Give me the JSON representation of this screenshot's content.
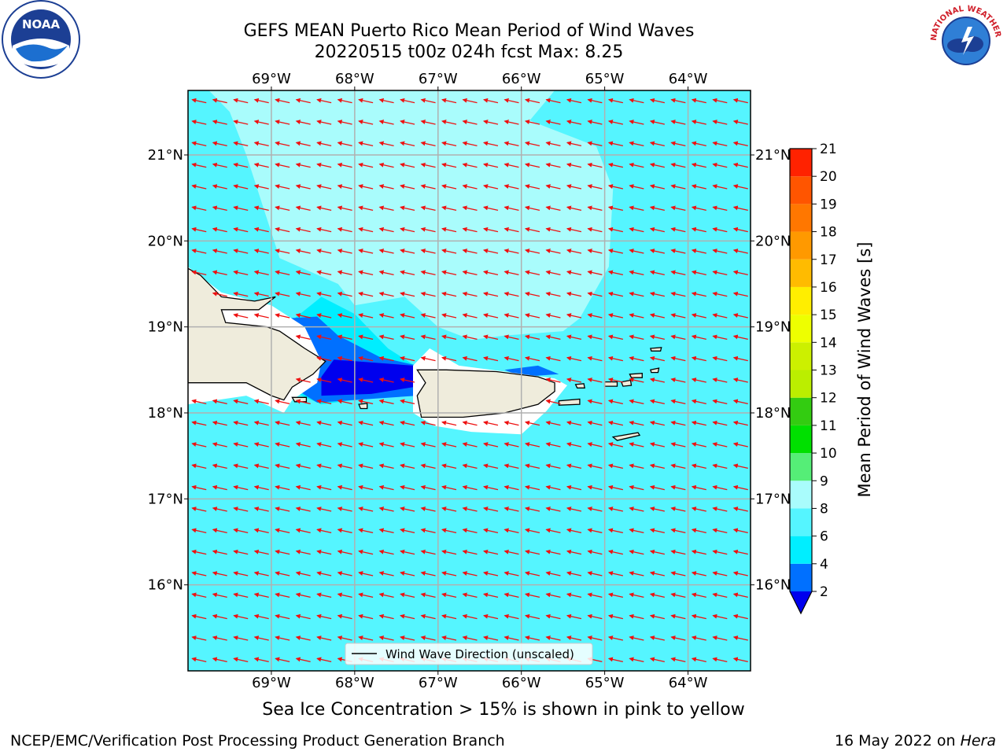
{
  "header": {
    "title_line1": "GEFS MEAN Puerto Rico Mean Period of Wind Waves",
    "title_line2": "20220515 t00z 024h fcst   Max: 8.25"
  },
  "logos": {
    "noaa": {
      "text": "NOAA",
      "icon": "noaa-seagull-logo-icon"
    },
    "nws": {
      "text": "NATIONAL WEATHER SERVICE",
      "icon": "nws-storm-logo-icon"
    }
  },
  "subtitle": "Sea Ice Concentration > 15% is shown in pink to yellow",
  "footer": {
    "credit": "NCEP/EMC/Verification Post Processing Product Generation Branch",
    "date_prefix": "16 May 2022 on ",
    "machine": "Hera"
  },
  "chart_data": {
    "type": "map",
    "lon_range": [
      -70.0,
      -63.25
    ],
    "lat_range": [
      15.0,
      21.75
    ],
    "lon_ticks": [
      -69,
      -68,
      -67,
      -66,
      -65,
      -64
    ],
    "lon_tick_labels": [
      "69°W",
      "68°W",
      "67°W",
      "66°W",
      "65°W",
      "64°W"
    ],
    "lat_ticks": [
      16,
      17,
      18,
      19,
      20,
      21
    ],
    "lat_tick_labels": [
      "16°N",
      "17°N",
      "18°N",
      "19°N",
      "20°N",
      "21°N"
    ],
    "grid": true,
    "legend": {
      "label": "Wind Wave Direction (unscaled)",
      "position": "bottom-center"
    },
    "arrow_direction": "west-northwest",
    "arrow_color": "#ee1111",
    "land_color": "#efecdc",
    "coast_color": "#000000",
    "colorbar": {
      "label": "Mean Period of Wind Waves [s]",
      "ticks": [
        2,
        4,
        6,
        8,
        9,
        10,
        11,
        12,
        13,
        14,
        15,
        16,
        17,
        18,
        19,
        20,
        21
      ],
      "underflow_color": "#0000ee",
      "levels": [
        {
          "from": 2,
          "to": 4,
          "color": "#0070ff"
        },
        {
          "from": 4,
          "to": 6,
          "color": "#00eeff"
        },
        {
          "from": 6,
          "to": 8,
          "color": "#55f5ff"
        },
        {
          "from": 8,
          "to": 9,
          "color": "#a9fcfc"
        },
        {
          "from": 9,
          "to": 10,
          "color": "#55ee77"
        },
        {
          "from": 10,
          "to": 11,
          "color": "#00e000"
        },
        {
          "from": 11,
          "to": 12,
          "color": "#33cc11"
        },
        {
          "from": 12,
          "to": 13,
          "color": "#bbee00"
        },
        {
          "from": 13,
          "to": 14,
          "color": "#ccf000"
        },
        {
          "from": 14,
          "to": 15,
          "color": "#eeff00"
        },
        {
          "from": 15,
          "to": 16,
          "color": "#ffee00"
        },
        {
          "from": 16,
          "to": 17,
          "color": "#ffbb00"
        },
        {
          "from": 17,
          "to": 18,
          "color": "#ff9900"
        },
        {
          "from": 18,
          "to": 19,
          "color": "#ff7700"
        },
        {
          "from": 19,
          "to": 20,
          "color": "#ff5500"
        },
        {
          "from": 20,
          "to": 21,
          "color": "#ff2200"
        }
      ],
      "overflow_color": "#ff0000"
    },
    "field_regions": [
      {
        "name": "background",
        "value": 7,
        "polygon": [
          [
            -70,
            21.75
          ],
          [
            -63.25,
            21.75
          ],
          [
            -63.25,
            15
          ],
          [
            -70,
            15
          ]
        ]
      },
      {
        "name": "north-light-region",
        "value": 8.25,
        "polygon": [
          [
            -69.75,
            21.75
          ],
          [
            -66.5,
            21.75
          ],
          [
            -65.6,
            21.75
          ],
          [
            -65.9,
            21.4
          ],
          [
            -65.1,
            21.1
          ],
          [
            -64.9,
            20.6
          ],
          [
            -64.95,
            19.7
          ],
          [
            -65.3,
            19.1
          ],
          [
            -65.5,
            18.95
          ],
          [
            -66.2,
            18.9
          ],
          [
            -66.6,
            18.85
          ],
          [
            -67.0,
            19.0
          ],
          [
            -67.4,
            19.35
          ],
          [
            -68.0,
            19.25
          ],
          [
            -68.2,
            19.5
          ],
          [
            -68.9,
            19.8
          ],
          [
            -69.1,
            20.4
          ],
          [
            -69.3,
            21.0
          ],
          [
            -69.5,
            21.5
          ]
        ]
      },
      {
        "name": "mona-passage-mid",
        "value": 4.5,
        "polygon": [
          [
            -68.85,
            19.0
          ],
          [
            -68.4,
            19.35
          ],
          [
            -68.0,
            19.15
          ],
          [
            -67.6,
            18.75
          ],
          [
            -67.2,
            18.5
          ],
          [
            -67.25,
            18.25
          ],
          [
            -68.4,
            18.1
          ],
          [
            -68.75,
            18.25
          ]
        ]
      },
      {
        "name": "mona-passage-blue",
        "value": 3,
        "polygon": [
          [
            -68.8,
            19.1
          ],
          [
            -68.45,
            19.12
          ],
          [
            -68.2,
            18.9
          ],
          [
            -67.7,
            18.65
          ],
          [
            -67.25,
            18.55
          ],
          [
            -67.25,
            18.2
          ],
          [
            -68.45,
            18.12
          ],
          [
            -68.75,
            18.3
          ]
        ]
      },
      {
        "name": "mona-passage-deep",
        "value": 1.5,
        "polygon": [
          [
            -68.25,
            18.62
          ],
          [
            -67.3,
            18.55
          ],
          [
            -67.3,
            18.3
          ],
          [
            -67.8,
            18.22
          ],
          [
            -68.4,
            18.2
          ],
          [
            -68.4,
            18.42
          ]
        ]
      },
      {
        "name": "pr-north-blue",
        "value": 3,
        "polygon": [
          [
            -66.2,
            18.5
          ],
          [
            -65.8,
            18.55
          ],
          [
            -65.55,
            18.45
          ],
          [
            -66.0,
            18.42
          ]
        ]
      }
    ],
    "nodata_regions": [
      {
        "name": "hispaniola-buffer",
        "polygon": [
          [
            -70,
            19.7
          ],
          [
            -69.6,
            19.4
          ],
          [
            -69.0,
            19.25
          ],
          [
            -68.6,
            19.0
          ],
          [
            -68.4,
            18.6
          ],
          [
            -68.45,
            18.35
          ],
          [
            -68.75,
            18.15
          ],
          [
            -68.85,
            18.0
          ],
          [
            -69.3,
            18.2
          ],
          [
            -70,
            18.1
          ]
        ]
      },
      {
        "name": "puerto-rico-buffer",
        "polygon": [
          [
            -67.3,
            18.55
          ],
          [
            -67.1,
            18.75
          ],
          [
            -66.75,
            18.55
          ],
          [
            -66.2,
            18.48
          ],
          [
            -65.6,
            18.4
          ],
          [
            -65.45,
            18.32
          ],
          [
            -65.7,
            18.02
          ],
          [
            -66.0,
            17.75
          ],
          [
            -66.6,
            17.78
          ],
          [
            -67.05,
            17.85
          ],
          [
            -67.3,
            18.0
          ]
        ]
      }
    ],
    "land": [
      {
        "name": "hispaniola",
        "polygon": [
          [
            -70,
            19.68
          ],
          [
            -69.85,
            19.6
          ],
          [
            -69.6,
            19.35
          ],
          [
            -69.2,
            19.3
          ],
          [
            -68.95,
            19.35
          ],
          [
            -69.15,
            19.2
          ],
          [
            -69.6,
            19.2
          ],
          [
            -69.55,
            19.05
          ],
          [
            -69.05,
            19.0
          ],
          [
            -68.9,
            18.95
          ],
          [
            -68.6,
            18.75
          ],
          [
            -68.35,
            18.6
          ],
          [
            -68.5,
            18.45
          ],
          [
            -68.75,
            18.3
          ],
          [
            -68.85,
            18.15
          ],
          [
            -69.0,
            18.2
          ],
          [
            -69.3,
            18.35
          ],
          [
            -70,
            18.35
          ]
        ]
      },
      {
        "name": "puerto-rico",
        "polygon": [
          [
            -67.25,
            18.5
          ],
          [
            -66.9,
            18.5
          ],
          [
            -66.3,
            18.48
          ],
          [
            -65.8,
            18.42
          ],
          [
            -65.6,
            18.35
          ],
          [
            -65.6,
            18.25
          ],
          [
            -65.8,
            18.1
          ],
          [
            -66.2,
            18.0
          ],
          [
            -66.7,
            17.95
          ],
          [
            -67.2,
            17.95
          ],
          [
            -67.25,
            18.2
          ],
          [
            -67.15,
            18.35
          ]
        ]
      },
      {
        "name": "vieques",
        "polygon": [
          [
            -65.55,
            18.14
          ],
          [
            -65.3,
            18.16
          ],
          [
            -65.3,
            18.1
          ],
          [
            -65.55,
            18.09
          ]
        ]
      },
      {
        "name": "culebra",
        "polygon": [
          [
            -65.35,
            18.33
          ],
          [
            -65.25,
            18.34
          ],
          [
            -65.24,
            18.29
          ],
          [
            -65.33,
            18.29
          ]
        ]
      },
      {
        "name": "st-thomas",
        "polygon": [
          [
            -65.0,
            18.36
          ],
          [
            -64.85,
            18.36
          ],
          [
            -64.85,
            18.31
          ],
          [
            -65.0,
            18.31
          ]
        ]
      },
      {
        "name": "st-john",
        "polygon": [
          [
            -64.8,
            18.36
          ],
          [
            -64.69,
            18.38
          ],
          [
            -64.68,
            18.32
          ],
          [
            -64.78,
            18.31
          ]
        ]
      },
      {
        "name": "tortola",
        "polygon": [
          [
            -64.7,
            18.45
          ],
          [
            -64.55,
            18.46
          ],
          [
            -64.55,
            18.41
          ],
          [
            -64.68,
            18.41
          ]
        ]
      },
      {
        "name": "anegada",
        "polygon": [
          [
            -64.45,
            18.75
          ],
          [
            -64.32,
            18.76
          ],
          [
            -64.33,
            18.72
          ],
          [
            -64.44,
            18.72
          ]
        ]
      },
      {
        "name": "virgin-gorda",
        "polygon": [
          [
            -64.45,
            18.5
          ],
          [
            -64.35,
            18.52
          ],
          [
            -64.36,
            18.47
          ],
          [
            -64.44,
            18.47
          ]
        ]
      },
      {
        "name": "st-croix",
        "polygon": [
          [
            -64.9,
            17.72
          ],
          [
            -64.6,
            17.77
          ],
          [
            -64.58,
            17.74
          ],
          [
            -64.85,
            17.68
          ]
        ]
      },
      {
        "name": "mona-island",
        "polygon": [
          [
            -67.95,
            18.1
          ],
          [
            -67.85,
            18.11
          ],
          [
            -67.85,
            18.05
          ],
          [
            -67.93,
            18.05
          ]
        ]
      },
      {
        "name": "saona-island",
        "polygon": [
          [
            -68.75,
            18.18
          ],
          [
            -68.58,
            18.18
          ],
          [
            -68.58,
            18.13
          ],
          [
            -68.72,
            18.13
          ]
        ]
      }
    ]
  }
}
